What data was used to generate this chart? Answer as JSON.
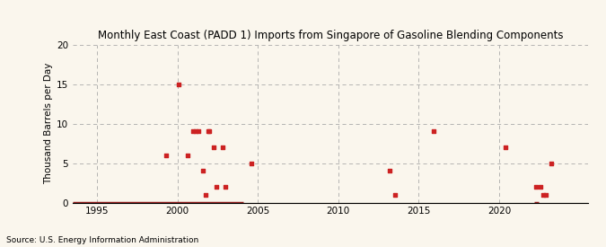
{
  "title": "Monthly East Coast (PADD 1) Imports from Singapore of Gasoline Blending Components",
  "ylabel": "Thousand Barrels per Day",
  "source": "Source: U.S. Energy Information Administration",
  "background_color": "#faf6ed",
  "scatter_color": "#cc2222",
  "line_color": "#8b1a1a",
  "xlim": [
    1993.5,
    2025.5
  ],
  "ylim": [
    0,
    20
  ],
  "yticks": [
    0,
    5,
    10,
    15,
    20
  ],
  "xticks": [
    1995,
    2000,
    2005,
    2010,
    2015,
    2020
  ],
  "scatter_x": [
    1999.3,
    2000.1,
    2001.0,
    2001.15,
    2001.3,
    2001.6,
    2001.75,
    2001.9,
    2002.0,
    2002.25,
    2002.4,
    2002.8,
    2004.6,
    2013.2,
    2013.5,
    2015.9,
    2020.4,
    2022.3,
    2022.55,
    2022.7,
    2022.9,
    2023.2,
    2003.0,
    2000.65
  ],
  "scatter_y": [
    6,
    15,
    9,
    9,
    9,
    4,
    1,
    9,
    9,
    7,
    2,
    7,
    5,
    4,
    1,
    9,
    7,
    2,
    2,
    1,
    1,
    5,
    2,
    6
  ],
  "zero_line_x_start": 1993.5,
  "zero_line_x_end": 2004.1,
  "zero_line2_x_start": 2022.15,
  "zero_line2_x_end": 2022.45
}
